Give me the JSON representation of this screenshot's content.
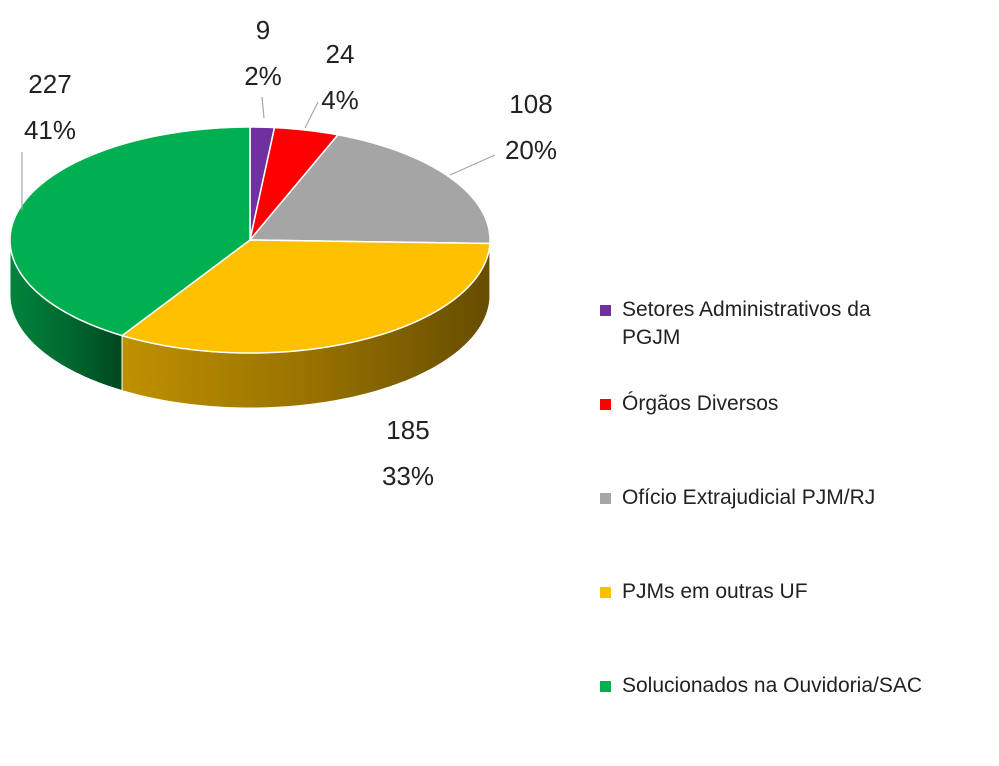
{
  "chart_data": {
    "type": "pie3d",
    "categories": [
      "Setores Administrativos da PGJM",
      "Órgãos Diversos",
      "Ofício Extrajudicial PJM/RJ",
      "PJMs em outras UF",
      "Solucionados na Ouvidoria/SAC"
    ],
    "values": [
      9,
      24,
      108,
      185,
      227
    ],
    "percent_labels": [
      "2%",
      "4%",
      "20%",
      "33%",
      "41%"
    ],
    "colors": [
      "#7030a0",
      "#ff0000",
      "#a5a5a5",
      "#ffc000",
      "#00b050"
    ],
    "legend": "right"
  }
}
